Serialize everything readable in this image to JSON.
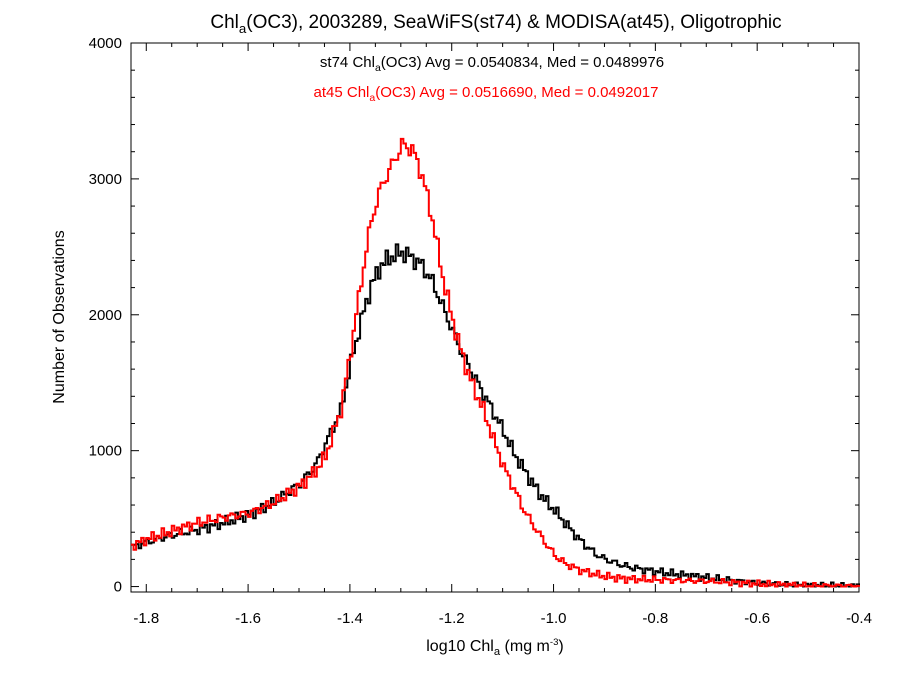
{
  "chart_data": {
    "type": "line",
    "title": {
      "prefix": "Chl",
      "sub": "a",
      "rest": "(OC3), 2003289, SeaWiFS(st74) & MODISA(at45), Oligotrophic"
    },
    "xlabel": {
      "prefix": "log10 Chl",
      "sub": "a",
      "mid": " (mg m",
      "sup": "-3",
      "end": ")"
    },
    "ylabel": "Number of Observations",
    "xlim": [
      -1.83,
      -0.4
    ],
    "ylim": [
      -40,
      4000
    ],
    "xticks": [
      "-1.8",
      "-1.6",
      "-1.4",
      "-1.2",
      "-1.0",
      "-0.8",
      "-0.6",
      "-0.4"
    ],
    "xtick_values": [
      -1.8,
      -1.6,
      -1.4,
      -1.2,
      -1.0,
      -0.8,
      -0.6,
      -0.4
    ],
    "yticks": [
      "0",
      "1000",
      "2000",
      "3000",
      "4000"
    ],
    "ytick_values": [
      0,
      1000,
      2000,
      3000,
      4000
    ],
    "grid": false,
    "annotations": [
      {
        "color": "#000000",
        "prefix": "st74 Chl",
        "sub": "a",
        "rest": "(OC3) Avg = 0.0540834, Med = 0.0489976"
      },
      {
        "color": "#ff0000",
        "prefix": "at45 Chl",
        "sub": "a",
        "rest": "(OC3) Avg = 0.0516690, Med = 0.0492017"
      }
    ],
    "series": [
      {
        "color": "#000000",
        "x": [
          -1.83,
          -1.8,
          -1.75,
          -1.7,
          -1.65,
          -1.6,
          -1.55,
          -1.5,
          -1.47,
          -1.45,
          -1.42,
          -1.4,
          -1.38,
          -1.36,
          -1.34,
          -1.32,
          -1.3,
          -1.28,
          -1.26,
          -1.24,
          -1.22,
          -1.2,
          -1.18,
          -1.16,
          -1.14,
          -1.12,
          -1.1,
          -1.08,
          -1.06,
          -1.04,
          -1.02,
          -1.0,
          -0.98,
          -0.95,
          -0.92,
          -0.9,
          -0.87,
          -0.85,
          -0.8,
          -0.75,
          -0.7,
          -0.65,
          -0.6,
          -0.55,
          -0.5,
          -0.45,
          -0.4
        ],
        "y": [
          290,
          330,
          380,
          420,
          470,
          530,
          620,
          760,
          890,
          1050,
          1300,
          1650,
          1960,
          2220,
          2370,
          2430,
          2460,
          2420,
          2360,
          2240,
          2060,
          1880,
          1700,
          1560,
          1420,
          1280,
          1140,
          980,
          860,
          740,
          640,
          560,
          470,
          340,
          240,
          200,
          160,
          140,
          110,
          85,
          65,
          45,
          25,
          15,
          8,
          5,
          3
        ]
      },
      {
        "color": "#ff0000",
        "x": [
          -1.83,
          -1.8,
          -1.75,
          -1.7,
          -1.65,
          -1.6,
          -1.55,
          -1.5,
          -1.47,
          -1.45,
          -1.42,
          -1.4,
          -1.38,
          -1.36,
          -1.34,
          -1.32,
          -1.3,
          -1.28,
          -1.26,
          -1.24,
          -1.22,
          -1.2,
          -1.18,
          -1.16,
          -1.14,
          -1.12,
          -1.1,
          -1.08,
          -1.06,
          -1.04,
          -1.02,
          -1.0,
          -0.98,
          -0.95,
          -0.92,
          -0.9,
          -0.87,
          -0.85,
          -0.8,
          -0.75,
          -0.7,
          -0.65,
          -0.6,
          -0.55,
          -0.5,
          -0.45,
          -0.4
        ],
        "y": [
          300,
          350,
          410,
          470,
          510,
          540,
          620,
          740,
          850,
          960,
          1300,
          1750,
          2250,
          2700,
          2950,
          3100,
          3250,
          3220,
          3020,
          2700,
          2280,
          1950,
          1680,
          1470,
          1300,
          1080,
          880,
          720,
          560,
          440,
          330,
          230,
          170,
          120,
          90,
          75,
          60,
          55,
          50,
          45,
          40,
          30,
          20,
          12,
          8,
          5,
          3
        ]
      }
    ]
  }
}
